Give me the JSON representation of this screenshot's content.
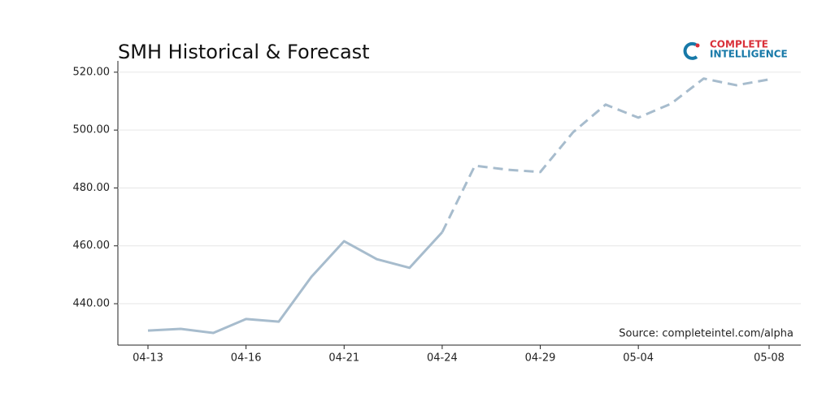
{
  "chart_data": {
    "type": "line",
    "title": "SMH Historical & Forecast",
    "categories": [
      "04-13",
      null,
      null,
      "04-16",
      null,
      null,
      "04-21",
      null,
      null,
      "04-24",
      null,
      null,
      "04-29",
      null,
      null,
      "05-04",
      null,
      null,
      null,
      "05-08"
    ],
    "series": [
      {
        "color": "#a7bccd",
        "dash": false,
        "values": [
          430.7,
          431.3,
          429.9,
          434.7,
          433.8,
          449.3,
          461.6,
          455.4,
          452.4,
          464.7,
          null,
          null,
          null,
          null,
          null,
          null,
          null,
          null,
          null,
          null
        ]
      },
      {
        "color": "#a7bccd",
        "dash": true,
        "values": [
          null,
          null,
          null,
          null,
          null,
          null,
          null,
          null,
          null,
          464.7,
          487.7,
          486.3,
          485.5,
          499.2,
          508.8,
          504.3,
          509.1,
          517.8,
          515.5,
          517.5
        ]
      }
    ],
    "ylim": [
      425.7,
      523.9
    ],
    "yticks": [
      {
        "value": 440,
        "label": "440.00"
      },
      {
        "value": 460,
        "label": "460.00"
      },
      {
        "value": 480,
        "label": "480.00"
      },
      {
        "value": 500,
        "label": "500.00"
      },
      {
        "value": 520,
        "label": "520.00"
      }
    ],
    "grid": true,
    "source": "Source: completeintel.com/alpha"
  },
  "logo": {
    "line1": "COMPLETE",
    "line2": "INTELLIGENCE"
  }
}
